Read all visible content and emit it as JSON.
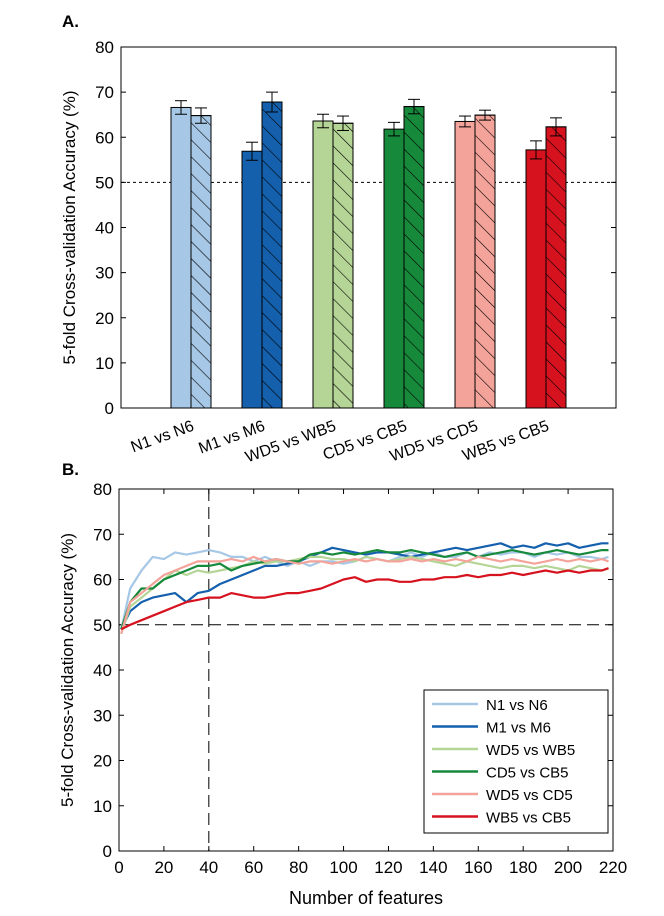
{
  "colors": {
    "n1_vs_n6": "#a6c8e6",
    "m1_vs_m6": "#1460ad",
    "wd5_vs_wb5": "#b5d596",
    "cd5_vs_cb5": "#17893b",
    "wd5_vs_cd5": "#f4a39a",
    "wb5_vs_cb5": "#d7121f",
    "reference_line": "#000000",
    "axis": "#000000",
    "panel_label": "#000000"
  },
  "chart_data": [
    {
      "panel_label": "A.",
      "type": "bar",
      "xlabel": "",
      "ylabel": "5-fold Cross-validation Accuracy (%)",
      "ylim": [
        0,
        80
      ],
      "yticks": [
        "0",
        "10",
        "20",
        "30",
        "40",
        "50",
        "60",
        "70",
        "80"
      ],
      "grid": false,
      "reference_line": 50,
      "categories": [
        "N1 vs N6",
        "M1 vs M6",
        "WD5 vs WB5",
        "CD5 vs CB5",
        "WD5 vs CD5",
        "WB5 vs CB5"
      ],
      "bars_per_category": [
        "solid",
        "hatched"
      ],
      "series": [
        {
          "fill": "solid",
          "values": [
            66.6,
            56.9,
            63.6,
            61.8,
            63.5,
            57.2
          ],
          "errors": [
            1.5,
            2.0,
            1.5,
            1.5,
            1.2,
            2.0
          ]
        },
        {
          "fill": "hatched",
          "values": [
            64.8,
            67.8,
            63.1,
            66.8,
            64.9,
            62.3
          ],
          "errors": [
            1.7,
            2.2,
            1.6,
            1.6,
            1.1,
            2.0
          ]
        }
      ]
    },
    {
      "panel_label": "B.",
      "type": "line",
      "xlabel": "Number of features",
      "ylabel": "5-fold Cross-validation Accuracy (%)",
      "xlim": [
        0,
        220
      ],
      "ylim": [
        0,
        80
      ],
      "xticks": [
        "0",
        "20",
        "40",
        "60",
        "80",
        "100",
        "120",
        "140",
        "160",
        "180",
        "200",
        "220"
      ],
      "yticks": [
        "0",
        "10",
        "20",
        "30",
        "40",
        "50",
        "60",
        "70",
        "80"
      ],
      "grid": false,
      "reference_line_y": 50,
      "reference_line_x": 40,
      "legend_position": "bottom-right",
      "x": [
        1,
        5,
        10,
        15,
        20,
        25,
        30,
        35,
        40,
        45,
        50,
        55,
        60,
        65,
        70,
        75,
        80,
        85,
        90,
        95,
        100,
        105,
        110,
        115,
        120,
        125,
        130,
        135,
        140,
        145,
        150,
        155,
        160,
        165,
        170,
        175,
        180,
        185,
        190,
        195,
        200,
        205,
        210,
        215,
        218
      ],
      "series": [
        {
          "name": "N1 vs N6",
          "values": [
            49,
            58,
            62,
            65,
            64.5,
            66,
            65.5,
            66,
            66.5,
            66,
            65,
            65,
            64,
            65,
            64,
            63,
            64,
            63,
            64,
            64,
            63.5,
            64,
            65,
            64.5,
            64,
            65,
            66,
            65,
            66,
            65,
            65,
            66,
            65,
            66,
            65.5,
            66,
            66,
            65,
            66,
            65.5,
            66,
            65,
            65,
            64.5,
            65
          ]
        },
        {
          "name": "M1 vs M6",
          "values": [
            49,
            53,
            55,
            56,
            56.5,
            57,
            55,
            57,
            57.5,
            59,
            60,
            61,
            62,
            63,
            63,
            63.5,
            64,
            65,
            66,
            67,
            66.5,
            66,
            65.5,
            66,
            66,
            65.5,
            65,
            65.5,
            66,
            66.5,
            67,
            66.5,
            67,
            67.5,
            68,
            67,
            67.5,
            67,
            68,
            67.5,
            68,
            67,
            67.5,
            68,
            68
          ]
        },
        {
          "name": "WD5 vs WB5",
          "values": [
            48,
            54,
            56,
            58,
            60,
            62,
            61,
            62,
            61.5,
            62,
            62.5,
            63,
            64,
            63.5,
            64,
            64,
            64.5,
            65,
            65,
            64.5,
            64.5,
            64,
            65,
            64.5,
            64,
            64.5,
            65,
            64.5,
            64,
            63.5,
            63,
            64,
            63.5,
            63,
            62.5,
            63,
            63,
            62.5,
            63,
            62.5,
            62,
            63,
            62.5,
            62,
            62.5
          ]
        },
        {
          "name": "CD5 vs CB5",
          "values": [
            49,
            55,
            58,
            58,
            60,
            61,
            62,
            63,
            63,
            63.5,
            62,
            63,
            63.5,
            64,
            64.5,
            64,
            64,
            65.5,
            66,
            65.5,
            66,
            65.5,
            66,
            66.5,
            66,
            66,
            66.5,
            66,
            65.5,
            65,
            65.5,
            66,
            65,
            65.5,
            66,
            66.5,
            66,
            65.5,
            66,
            66.5,
            66,
            65.5,
            66,
            66.5,
            66.5
          ]
        },
        {
          "name": "WD5 vs CD5",
          "values": [
            48,
            55,
            57,
            59,
            61,
            62,
            63,
            64,
            64,
            64,
            64.5,
            64,
            65,
            64,
            64.5,
            64,
            63.5,
            64,
            64,
            63.5,
            64,
            64.5,
            64,
            64.5,
            64,
            64,
            64.5,
            64,
            64.5,
            64,
            64.5,
            64,
            65,
            64.5,
            64,
            64.5,
            64,
            63.5,
            64,
            64.5,
            64,
            64.5,
            64,
            64.5,
            64
          ]
        },
        {
          "name": "WB5 vs CB5",
          "values": [
            49,
            50,
            51,
            52,
            53,
            54,
            55,
            55.5,
            56,
            56,
            57,
            56.5,
            56,
            56,
            56.5,
            57,
            57,
            57.5,
            58,
            59,
            60,
            60.5,
            59.5,
            60,
            60,
            59.5,
            59.5,
            60,
            60,
            60.5,
            60.5,
            61,
            60.5,
            61,
            61,
            61.5,
            61,
            61.5,
            62,
            61.5,
            62,
            61.5,
            62,
            62,
            62.5
          ]
        }
      ]
    }
  ]
}
